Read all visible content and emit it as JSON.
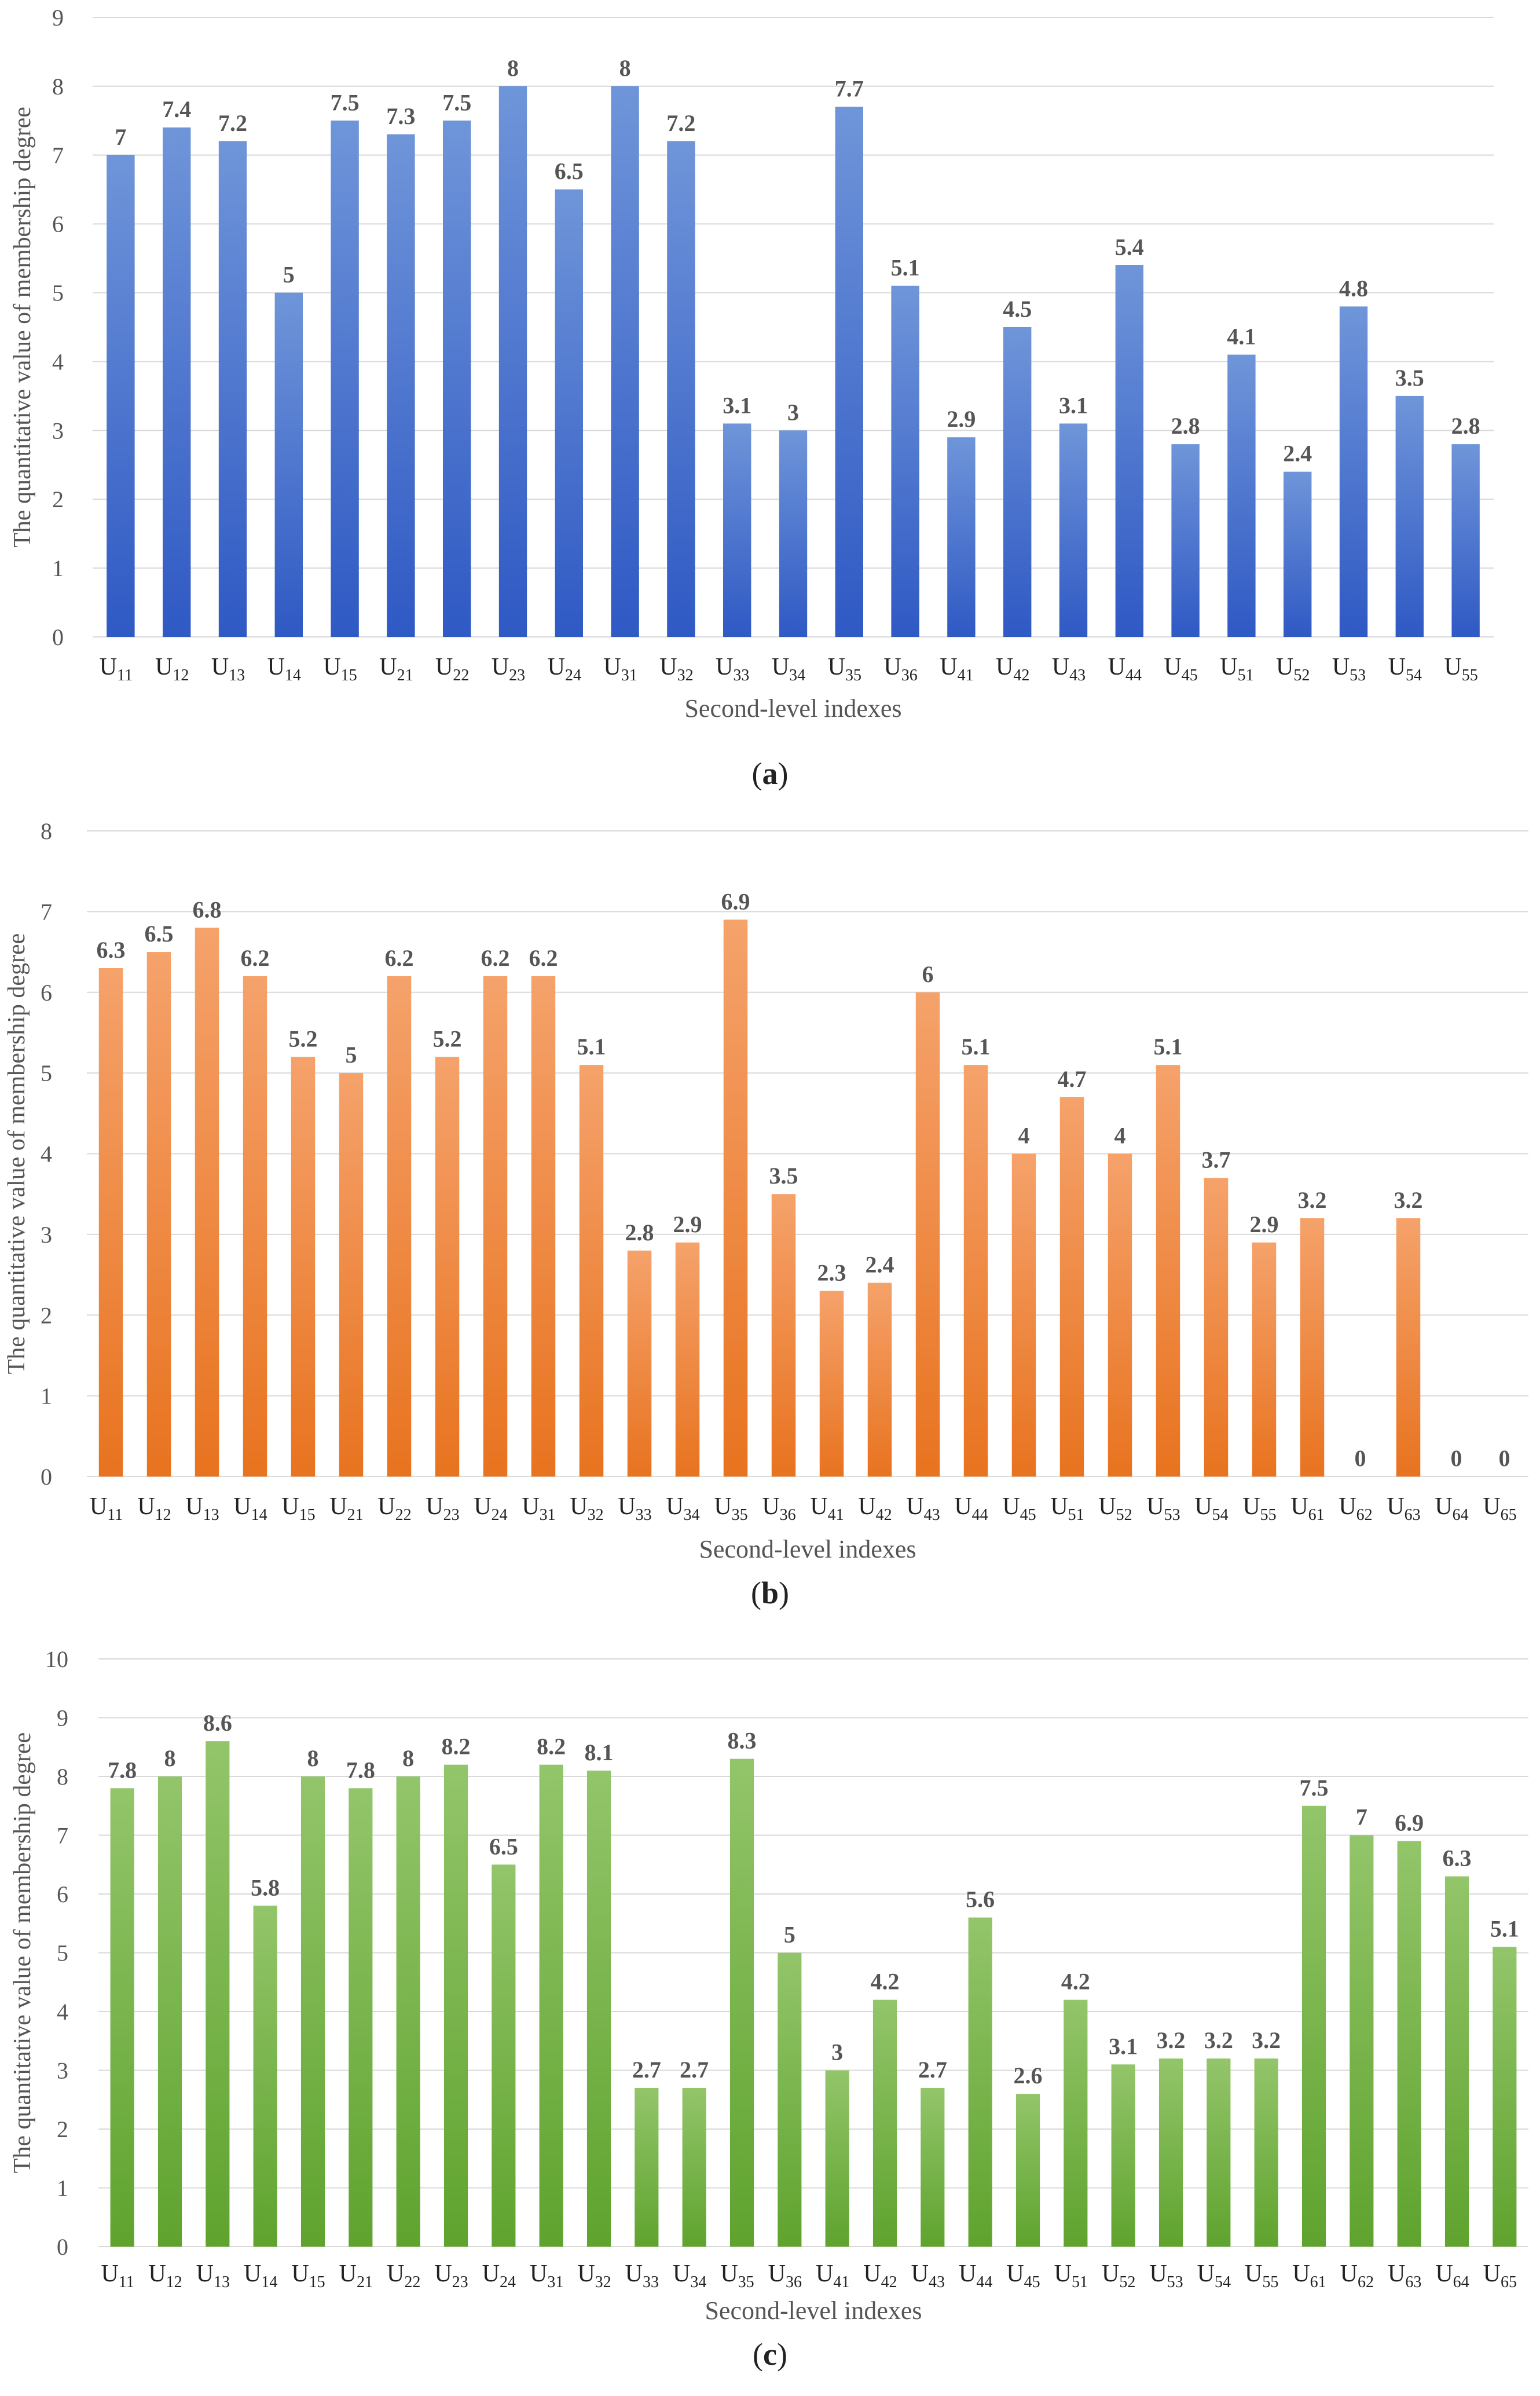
{
  "chart_data": [
    {
      "type": "bar",
      "panel_label": "a",
      "ylabel": "The quantitative value of membership degree",
      "xlabel": "Second-level indexes",
      "ylim": [
        0,
        9
      ],
      "yticks": [
        0,
        1,
        2,
        3,
        4,
        5,
        6,
        7,
        8,
        9
      ],
      "grid": true,
      "color_top": "#6f95d9",
      "color_bottom": "#2f59c4",
      "categories": [
        {
          "base": "U",
          "sub": "11"
        },
        {
          "base": "U",
          "sub": "12"
        },
        {
          "base": "U",
          "sub": "13"
        },
        {
          "base": "U",
          "sub": "14"
        },
        {
          "base": "U",
          "sub": "15"
        },
        {
          "base": "U",
          "sub": "21"
        },
        {
          "base": "U",
          "sub": "22"
        },
        {
          "base": "U",
          "sub": "23"
        },
        {
          "base": "U",
          "sub": "24"
        },
        {
          "base": "U",
          "sub": "31"
        },
        {
          "base": "U",
          "sub": "32"
        },
        {
          "base": "U",
          "sub": "33"
        },
        {
          "base": "U",
          "sub": "34"
        },
        {
          "base": "U",
          "sub": "35"
        },
        {
          "base": "U",
          "sub": "36"
        },
        {
          "base": "U",
          "sub": "41"
        },
        {
          "base": "U",
          "sub": "42"
        },
        {
          "base": "U",
          "sub": "43"
        },
        {
          "base": "U",
          "sub": "44"
        },
        {
          "base": "U",
          "sub": "45"
        },
        {
          "base": "U",
          "sub": "51"
        },
        {
          "base": "U",
          "sub": "52"
        },
        {
          "base": "U",
          "sub": "53"
        },
        {
          "base": "U",
          "sub": "54"
        },
        {
          "base": "U",
          "sub": "55"
        }
      ],
      "values": [
        7,
        7.4,
        7.2,
        5,
        7.5,
        7.3,
        7.5,
        8,
        6.5,
        8,
        7.2,
        3.1,
        3,
        7.7,
        5.1,
        2.9,
        4.5,
        3.1,
        5.4,
        2.8,
        4.1,
        2.4,
        4.8,
        3.5,
        2.8
      ],
      "data_labels": [
        "7",
        "7.4",
        "7.2",
        "5",
        "7.5",
        "7.3",
        "7.5",
        "8",
        "6.5",
        "8",
        "7.2",
        "3.1",
        "3",
        "7.7",
        "5.1",
        "2.9",
        "4.5",
        "3.1",
        "5.4",
        "2.8",
        "4.1",
        "2.4",
        "4.8",
        "3.5",
        "2.8"
      ]
    },
    {
      "type": "bar",
      "panel_label": "b",
      "ylabel": "The quantitative value of membership degree",
      "xlabel": "Second-level indexes",
      "ylim": [
        0,
        8
      ],
      "yticks": [
        0,
        1,
        2,
        3,
        4,
        5,
        6,
        7,
        8
      ],
      "grid": true,
      "color_top": "#f5a26b",
      "color_bottom": "#e8731f",
      "categories": [
        {
          "base": "U",
          "sub": "11"
        },
        {
          "base": "U",
          "sub": "12"
        },
        {
          "base": "U",
          "sub": "13"
        },
        {
          "base": "U",
          "sub": "14"
        },
        {
          "base": "U",
          "sub": "15"
        },
        {
          "base": "U",
          "sub": "21"
        },
        {
          "base": "U",
          "sub": "22"
        },
        {
          "base": "U",
          "sub": "23"
        },
        {
          "base": "U",
          "sub": "24"
        },
        {
          "base": "U",
          "sub": "31"
        },
        {
          "base": "U",
          "sub": "32"
        },
        {
          "base": "U",
          "sub": "33"
        },
        {
          "base": "U",
          "sub": "34"
        },
        {
          "base": "U",
          "sub": "35"
        },
        {
          "base": "U",
          "sub": "36"
        },
        {
          "base": "U",
          "sub": "41"
        },
        {
          "base": "U",
          "sub": "42"
        },
        {
          "base": "U",
          "sub": "43"
        },
        {
          "base": "U",
          "sub": "44"
        },
        {
          "base": "U",
          "sub": "45"
        },
        {
          "base": "U",
          "sub": "51"
        },
        {
          "base": "U",
          "sub": "52"
        },
        {
          "base": "U",
          "sub": "53"
        },
        {
          "base": "U",
          "sub": "54"
        },
        {
          "base": "U",
          "sub": "55"
        },
        {
          "base": "U",
          "sub": "61"
        },
        {
          "base": "U",
          "sub": "62"
        },
        {
          "base": "U",
          "sub": "63"
        },
        {
          "base": "U",
          "sub": "64"
        },
        {
          "base": "U",
          "sub": "65"
        }
      ],
      "values": [
        6.3,
        6.5,
        6.8,
        6.2,
        5.2,
        5,
        6.2,
        5.2,
        6.2,
        6.2,
        5.1,
        2.8,
        2.9,
        6.9,
        3.5,
        2.3,
        2.4,
        6,
        5.1,
        4,
        4.7,
        4,
        5.1,
        3.7,
        2.9,
        3.2,
        0,
        3.2,
        0,
        0
      ],
      "data_labels": [
        "6.3",
        "6.5",
        "6.8",
        "6.2",
        "5.2",
        "5",
        "6.2",
        "5.2",
        "6.2",
        "6.2",
        "5.1",
        "2.8",
        "2.9",
        "6.9",
        "3.5",
        "2.3",
        "2.4",
        "6",
        "5.1",
        "4",
        "4.7",
        "4",
        "5.1",
        "3.7",
        "2.9",
        "3.2",
        "0",
        "3.2",
        "0",
        "0"
      ]
    },
    {
      "type": "bar",
      "panel_label": "c",
      "ylabel": "The quantitative value of membership degree",
      "xlabel": "Second-level indexes",
      "ylim": [
        0,
        10
      ],
      "yticks": [
        0,
        1,
        2,
        3,
        4,
        5,
        6,
        7,
        8,
        9,
        10
      ],
      "grid": true,
      "color_top": "#93c56a",
      "color_bottom": "#5fa32e",
      "categories": [
        {
          "base": "U",
          "sub": "11"
        },
        {
          "base": "U",
          "sub": "12"
        },
        {
          "base": "U",
          "sub": "13"
        },
        {
          "base": "U",
          "sub": "14"
        },
        {
          "base": "U",
          "sub": "15"
        },
        {
          "base": "U",
          "sub": "21"
        },
        {
          "base": "U",
          "sub": "22"
        },
        {
          "base": "U",
          "sub": "23"
        },
        {
          "base": "U",
          "sub": "24"
        },
        {
          "base": "U",
          "sub": "31"
        },
        {
          "base": "U",
          "sub": "32"
        },
        {
          "base": "U",
          "sub": "33"
        },
        {
          "base": "U",
          "sub": "34"
        },
        {
          "base": "U",
          "sub": "35"
        },
        {
          "base": "U",
          "sub": "36"
        },
        {
          "base": "U",
          "sub": "41"
        },
        {
          "base": "U",
          "sub": "42"
        },
        {
          "base": "U",
          "sub": "43"
        },
        {
          "base": "U",
          "sub": "44"
        },
        {
          "base": "U",
          "sub": "45"
        },
        {
          "base": "U",
          "sub": "51"
        },
        {
          "base": "U",
          "sub": "52"
        },
        {
          "base": "U",
          "sub": "53"
        },
        {
          "base": "U",
          "sub": "54"
        },
        {
          "base": "U",
          "sub": "55"
        },
        {
          "base": "U",
          "sub": "61"
        },
        {
          "base": "U",
          "sub": "62"
        },
        {
          "base": "U",
          "sub": "63"
        },
        {
          "base": "U",
          "sub": "64"
        },
        {
          "base": "U",
          "sub": "65"
        }
      ],
      "values": [
        7.8,
        8,
        8.6,
        5.8,
        8,
        7.8,
        8,
        8.2,
        6.5,
        8.2,
        8.1,
        2.7,
        2.7,
        8.3,
        5,
        3,
        4.2,
        2.7,
        5.6,
        2.6,
        4.2,
        3.1,
        3.2,
        3.2,
        3.2,
        7.5,
        7,
        6.9,
        6.3,
        5.1
      ],
      "data_labels": [
        "7.8",
        "8",
        "8.6",
        "5.8",
        "8",
        "7.8",
        "8",
        "8.2",
        "6.5",
        "8.2",
        "8.1",
        "2.7",
        "2.7",
        "8.3",
        "5",
        "3",
        "4.2",
        "2.7",
        "5.6",
        "2.6",
        "4.2",
        "3.1",
        "3.2",
        "3.2",
        "3.2",
        "7.5",
        "7",
        "6.9",
        "6.3",
        "5.1"
      ]
    }
  ]
}
